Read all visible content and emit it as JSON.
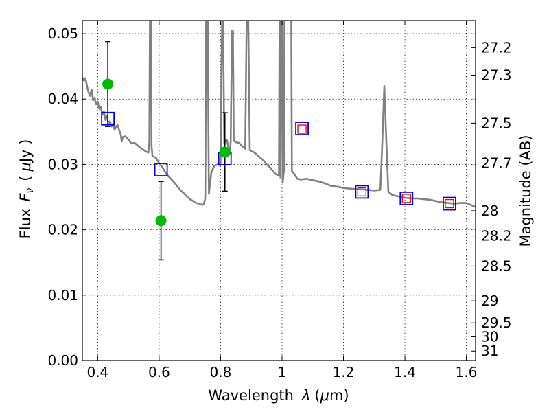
{
  "chart_data": {
    "type": "scatter",
    "xlabel_prefix": "Wavelength",
    "xlabel_var": "λ",
    "xlabel_units_open": "(",
    "xlabel_units_mu": "μ",
    "xlabel_units_rest": "m)",
    "ylabel_prefix": "Flux",
    "ylabel_var": "F",
    "ylabel_sub": "ν",
    "ylabel_units_open": "(",
    "ylabel_units_mu": "μ",
    "ylabel_units_rest": "Jy )",
    "y2label": "Magnitude (AB)",
    "xlim": [
      0.35,
      1.63
    ],
    "ylim": [
      0.0,
      0.052
    ],
    "xticks": [
      0.4,
      0.6,
      0.8,
      1.0,
      1.2,
      1.4,
      1.6
    ],
    "xtick_labels": [
      "0.4",
      "0.6",
      "0.8",
      "1",
      "1.2",
      "1.4",
      "1.6"
    ],
    "yticks": [
      0.0,
      0.01,
      0.02,
      0.03,
      0.04,
      0.05
    ],
    "ytick_labels": [
      "0.00",
      "0.01",
      "0.02",
      "0.03",
      "0.04",
      "0.05"
    ],
    "mag_ticks": [
      27.2,
      27.3,
      27.5,
      27.7,
      28,
      28.2,
      28.5,
      29,
      29.5,
      30,
      31
    ],
    "mag_tick_labels": [
      "27.2",
      "27.3",
      "27.5",
      "27.7",
      "28",
      "28.2",
      "28.5",
      "29",
      "29.5",
      "30",
      "31"
    ],
    "grid": true,
    "series": [
      {
        "name": "model SED",
        "kind": "line",
        "color": "#808080",
        "points": [
          [
            0.35,
            0.0433
          ],
          [
            0.355,
            0.0428
          ],
          [
            0.36,
            0.0432
          ],
          [
            0.365,
            0.042
          ],
          [
            0.37,
            0.041
          ],
          [
            0.375,
            0.0405
          ],
          [
            0.38,
            0.0415
          ],
          [
            0.385,
            0.0398
          ],
          [
            0.39,
            0.0402
          ],
          [
            0.395,
            0.0392
          ],
          [
            0.4,
            0.0396
          ],
          [
            0.405,
            0.0385
          ],
          [
            0.41,
            0.0388
          ],
          [
            0.415,
            0.0376
          ],
          [
            0.42,
            0.0381
          ],
          [
            0.425,
            0.0368
          ],
          [
            0.43,
            0.0374
          ],
          [
            0.435,
            0.0362
          ],
          [
            0.44,
            0.0366
          ],
          [
            0.445,
            0.0358
          ],
          [
            0.45,
            0.0362
          ],
          [
            0.455,
            0.0353
          ],
          [
            0.46,
            0.0358
          ],
          [
            0.465,
            0.036
          ],
          [
            0.47,
            0.0352
          ],
          [
            0.475,
            0.0346
          ],
          [
            0.478,
            0.0335
          ],
          [
            0.482,
            0.0342
          ],
          [
            0.49,
            0.0343
          ],
          [
            0.5,
            0.0338
          ],
          [
            0.51,
            0.0332
          ],
          [
            0.52,
            0.0333
          ],
          [
            0.53,
            0.0329
          ],
          [
            0.54,
            0.0325
          ],
          [
            0.55,
            0.0322
          ],
          [
            0.56,
            0.0319
          ],
          [
            0.565,
            0.0318
          ],
          [
            0.568,
            0.0335
          ],
          [
            0.57,
            0.0528
          ],
          [
            0.573,
            0.0528
          ],
          [
            0.575,
            0.033
          ],
          [
            0.578,
            0.0313
          ],
          [
            0.59,
            0.031
          ],
          [
            0.6,
            0.0302
          ],
          [
            0.61,
            0.0296
          ],
          [
            0.62,
            0.0288
          ],
          [
            0.63,
            0.0282
          ],
          [
            0.64,
            0.0277
          ],
          [
            0.65,
            0.0272
          ],
          [
            0.66,
            0.0266
          ],
          [
            0.67,
            0.026
          ],
          [
            0.68,
            0.0256
          ],
          [
            0.69,
            0.0251
          ],
          [
            0.7,
            0.0247
          ],
          [
            0.71,
            0.0244
          ],
          [
            0.72,
            0.0241
          ],
          [
            0.73,
            0.024
          ],
          [
            0.74,
            0.0238
          ],
          [
            0.745,
            0.0239
          ],
          [
            0.75,
            0.0248
          ],
          [
            0.753,
            0.0528
          ],
          [
            0.758,
            0.0528
          ],
          [
            0.762,
            0.0255
          ],
          [
            0.765,
            0.0268
          ],
          [
            0.77,
            0.0288
          ],
          [
            0.78,
            0.0298
          ],
          [
            0.79,
            0.03
          ],
          [
            0.795,
            0.0299
          ],
          [
            0.8,
            0.0302
          ],
          [
            0.805,
            0.0528
          ],
          [
            0.808,
            0.0528
          ],
          [
            0.812,
            0.0332
          ],
          [
            0.82,
            0.0338
          ],
          [
            0.825,
            0.0328
          ],
          [
            0.83,
            0.0315
          ],
          [
            0.833,
            0.0335
          ],
          [
            0.837,
            0.0505
          ],
          [
            0.84,
            0.0505
          ],
          [
            0.843,
            0.0336
          ],
          [
            0.85,
            0.0334
          ],
          [
            0.86,
            0.0333
          ],
          [
            0.87,
            0.0328
          ],
          [
            0.88,
            0.0324
          ],
          [
            0.885,
            0.0528
          ],
          [
            0.89,
            0.0528
          ],
          [
            0.895,
            0.0322
          ],
          [
            0.91,
            0.0318
          ],
          [
            0.92,
            0.0314
          ],
          [
            0.93,
            0.031
          ],
          [
            0.94,
            0.0306
          ],
          [
            0.95,
            0.03
          ],
          [
            0.96,
            0.0296
          ],
          [
            0.97,
            0.029
          ],
          [
            0.98,
            0.0285
          ],
          [
            0.99,
            0.0283
          ],
          [
            0.992,
            0.0528
          ],
          [
            0.994,
            0.0528
          ],
          [
            0.995,
            0.028
          ],
          [
            0.997,
            0.0528
          ],
          [
            1.0,
            0.0528
          ],
          [
            1.002,
            0.0272
          ],
          [
            1.006,
            0.029
          ],
          [
            1.008,
            0.0528
          ],
          [
            1.03,
            0.0528
          ],
          [
            1.032,
            0.029
          ],
          [
            1.04,
            0.0285
          ],
          [
            1.05,
            0.0278
          ],
          [
            1.06,
            0.0277
          ],
          [
            1.08,
            0.0278
          ],
          [
            1.1,
            0.0276
          ],
          [
            1.12,
            0.0274
          ],
          [
            1.14,
            0.0271
          ],
          [
            1.16,
            0.0267
          ],
          [
            1.18,
            0.0266
          ],
          [
            1.2,
            0.0264
          ],
          [
            1.22,
            0.0263
          ],
          [
            1.24,
            0.0262
          ],
          [
            1.26,
            0.0262
          ],
          [
            1.28,
            0.0261
          ],
          [
            1.3,
            0.026
          ],
          [
            1.32,
            0.0261
          ],
          [
            1.326,
            0.0328
          ],
          [
            1.333,
            0.042
          ],
          [
            1.34,
            0.033
          ],
          [
            1.346,
            0.0258
          ],
          [
            1.36,
            0.0253
          ],
          [
            1.38,
            0.0251
          ],
          [
            1.4,
            0.0249
          ],
          [
            1.42,
            0.0248
          ],
          [
            1.44,
            0.0248
          ],
          [
            1.46,
            0.0247
          ],
          [
            1.48,
            0.0246
          ],
          [
            1.5,
            0.0244
          ],
          [
            1.52,
            0.0242
          ],
          [
            1.54,
            0.0241
          ],
          [
            1.56,
            0.024
          ],
          [
            1.58,
            0.0241
          ],
          [
            1.6,
            0.0241
          ],
          [
            1.62,
            0.0237
          ],
          [
            1.63,
            0.0235
          ]
        ]
      },
      {
        "name": "observed photometry",
        "kind": "point_errorbar",
        "color": "#00bb00",
        "points": [
          {
            "x": 0.433,
            "y": 0.0423,
            "err": 0.0065
          },
          {
            "x": 0.606,
            "y": 0.0214,
            "err": 0.006
          },
          {
            "x": 0.814,
            "y": 0.0319,
            "err": 0.006
          }
        ]
      },
      {
        "name": "model photometry",
        "kind": "open_square",
        "color": "#0000ff",
        "points": [
          [
            0.433,
            0.037
          ],
          [
            0.606,
            0.0292
          ],
          [
            0.814,
            0.0309
          ],
          [
            1.065,
            0.0355
          ],
          [
            1.26,
            0.0258
          ],
          [
            1.405,
            0.0248
          ],
          [
            1.545,
            0.024
          ]
        ]
      },
      {
        "name": "model photometry (inner)",
        "kind": "open_square",
        "color": "#ff0000",
        "points": [
          [
            1.065,
            0.0354
          ],
          [
            1.26,
            0.0258
          ],
          [
            1.405,
            0.0248
          ],
          [
            1.545,
            0.024
          ]
        ]
      }
    ]
  }
}
